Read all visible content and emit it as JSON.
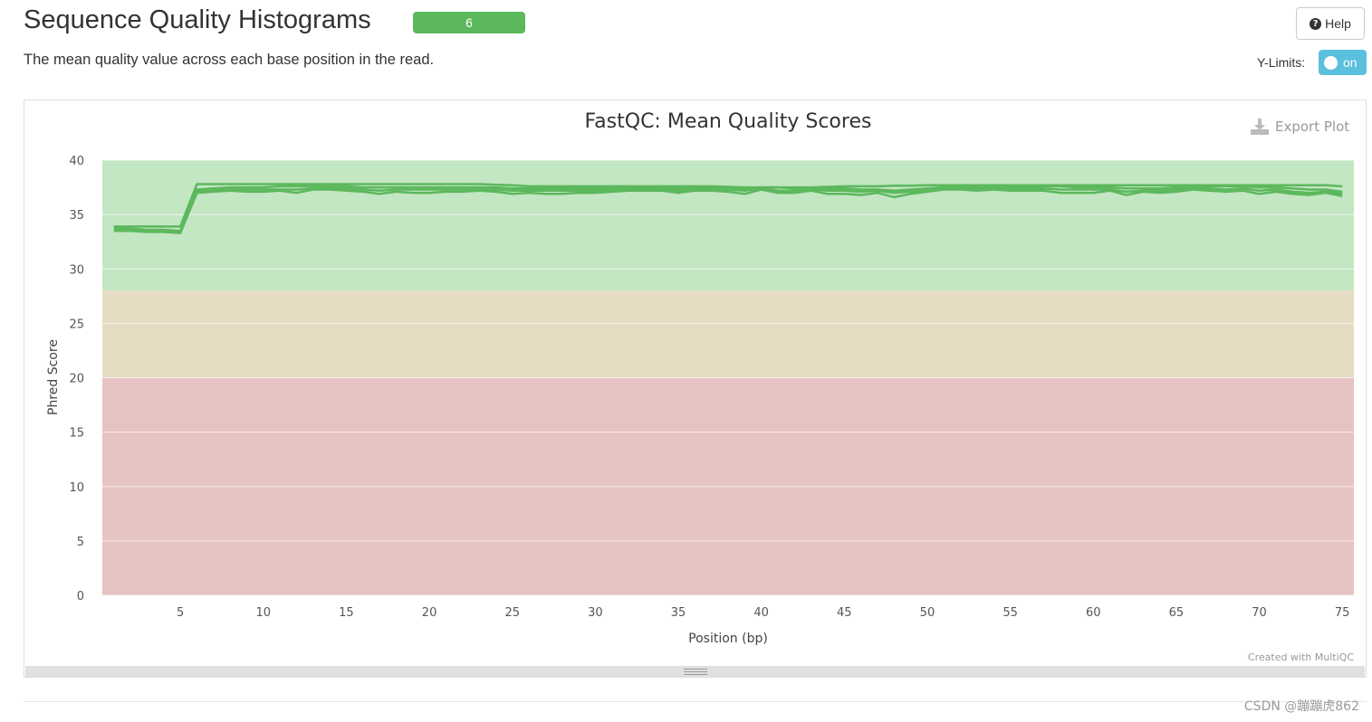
{
  "header": {
    "title": "Sequence Quality Histograms",
    "badge_count": "6",
    "description": "The mean quality value across each base position in the read."
  },
  "controls": {
    "help_label": "Help",
    "help_icon": "question-circle-icon",
    "ylimits_label": "Y-Limits:",
    "ylimits_toggle": "on"
  },
  "plot_ui": {
    "export_label": "Export Plot",
    "export_icon": "download-icon",
    "credit": "Created with MultiQC"
  },
  "watermark": "CSDN @蹦蹦虎862",
  "colors": {
    "series_line": "#5cb85c",
    "band_good": "#c3e6c3",
    "band_warn": "#e6dcc3",
    "band_fail": "#e6c3c3",
    "badge": "#5cb85c",
    "toggle": "#5bc0de"
  },
  "chart_data": {
    "type": "line",
    "title": "FastQC: Mean Quality Scores",
    "xlabel": "Position (bp)",
    "ylabel": "Phred Score",
    "xlim": [
      0.3,
      75.7
    ],
    "ylim": [
      0,
      40
    ],
    "x_ticks": [
      5,
      10,
      15,
      20,
      25,
      30,
      35,
      40,
      45,
      50,
      55,
      60,
      65,
      70,
      75
    ],
    "y_ticks": [
      0,
      5,
      10,
      15,
      20,
      25,
      30,
      35,
      40
    ],
    "grid": true,
    "legend": "none",
    "bands": [
      {
        "from": 28,
        "to": 40,
        "color": "#c3e6c3"
      },
      {
        "from": 20,
        "to": 28,
        "color": "#e6dcc3"
      },
      {
        "from": 0,
        "to": 20,
        "color": "#e6c3c3"
      }
    ],
    "x": [
      1,
      2,
      3,
      4,
      5,
      6,
      7,
      8,
      9,
      10,
      11,
      12,
      13,
      14,
      15,
      16,
      17,
      18,
      19,
      20,
      21,
      22,
      23,
      24,
      25,
      26,
      27,
      28,
      29,
      30,
      31,
      32,
      33,
      34,
      35,
      36,
      37,
      38,
      39,
      40,
      41,
      42,
      43,
      44,
      45,
      46,
      47,
      48,
      49,
      50,
      51,
      52,
      53,
      54,
      55,
      56,
      57,
      58,
      59,
      60,
      61,
      62,
      63,
      64,
      65,
      66,
      67,
      68,
      69,
      70,
      71,
      72,
      73,
      74,
      75
    ],
    "series": [
      {
        "values": [
          33.9,
          33.9,
          33.9,
          33.9,
          33.9,
          37.8,
          37.8,
          37.8,
          37.8,
          37.8,
          37.8,
          37.8,
          37.8,
          37.8,
          37.8,
          37.8,
          37.8,
          37.8,
          37.8,
          37.8,
          37.8,
          37.8,
          37.8,
          37.75,
          37.7,
          37.6,
          37.6,
          37.6,
          37.6,
          37.6,
          37.6,
          37.6,
          37.6,
          37.6,
          37.6,
          37.6,
          37.6,
          37.55,
          37.5,
          37.5,
          37.5,
          37.5,
          37.5,
          37.55,
          37.6,
          37.6,
          37.6,
          37.65,
          37.65,
          37.7,
          37.7,
          37.7,
          37.7,
          37.7,
          37.7,
          37.7,
          37.7,
          37.7,
          37.7,
          37.7,
          37.7,
          37.7,
          37.7,
          37.7,
          37.7,
          37.7,
          37.7,
          37.7,
          37.7,
          37.7,
          37.7,
          37.7,
          37.7,
          37.7,
          37.6
        ]
      },
      {
        "values": [
          33.7,
          33.7,
          33.6,
          33.6,
          33.5,
          37.3,
          37.4,
          37.5,
          37.5,
          37.5,
          37.6,
          37.6,
          37.6,
          37.6,
          37.6,
          37.5,
          37.5,
          37.5,
          37.5,
          37.5,
          37.5,
          37.5,
          37.5,
          37.5,
          37.4,
          37.4,
          37.4,
          37.4,
          37.4,
          37.4,
          37.4,
          37.4,
          37.4,
          37.4,
          37.4,
          37.4,
          37.4,
          37.4,
          37.4,
          37.5,
          37.5,
          37.4,
          37.4,
          37.4,
          37.4,
          37.3,
          37.3,
          37.2,
          37.3,
          37.4,
          37.5,
          37.6,
          37.6,
          37.6,
          37.6,
          37.6,
          37.6,
          37.6,
          37.5,
          37.5,
          37.5,
          37.4,
          37.4,
          37.4,
          37.5,
          37.6,
          37.6,
          37.6,
          37.6,
          37.5,
          37.5,
          37.4,
          37.3,
          37.3,
          37.1
        ]
      },
      {
        "values": [
          33.5,
          33.5,
          33.4,
          33.4,
          33.3,
          37.0,
          37.1,
          37.2,
          37.1,
          37.1,
          37.2,
          37.0,
          37.3,
          37.3,
          37.2,
          37.1,
          36.9,
          37.1,
          37.0,
          37.0,
          37.1,
          37.1,
          37.2,
          37.1,
          36.9,
          37.0,
          36.9,
          36.9,
          37.0,
          37.0,
          37.1,
          37.2,
          37.2,
          37.2,
          37.0,
          37.2,
          37.2,
          37.1,
          36.9,
          37.3,
          37.0,
          37.0,
          37.2,
          36.9,
          36.9,
          36.8,
          37.0,
          36.6,
          36.9,
          37.1,
          37.3,
          37.3,
          37.2,
          37.3,
          37.2,
          37.2,
          37.2,
          37.0,
          37.0,
          37.0,
          37.2,
          36.8,
          37.1,
          37.0,
          37.1,
          37.3,
          37.2,
          37.1,
          37.2,
          36.9,
          37.1,
          36.9,
          36.8,
          37.0,
          36.7
        ]
      },
      {
        "values": [
          33.6,
          33.6,
          33.5,
          33.5,
          33.4,
          37.1,
          37.2,
          37.3,
          37.3,
          37.3,
          37.3,
          37.3,
          37.4,
          37.4,
          37.4,
          37.3,
          37.2,
          37.3,
          37.3,
          37.3,
          37.3,
          37.3,
          37.3,
          37.3,
          37.2,
          37.2,
          37.2,
          37.2,
          37.2,
          37.2,
          37.3,
          37.3,
          37.3,
          37.3,
          37.2,
          37.3,
          37.3,
          37.3,
          37.2,
          37.4,
          37.2,
          37.2,
          37.3,
          37.2,
          37.2,
          37.1,
          37.2,
          37.0,
          37.1,
          37.2,
          37.4,
          37.4,
          37.4,
          37.4,
          37.4,
          37.4,
          37.4,
          37.3,
          37.3,
          37.3,
          37.3,
          37.1,
          37.2,
          37.2,
          37.3,
          37.4,
          37.4,
          37.3,
          37.4,
          37.2,
          37.3,
          37.1,
          37.0,
          37.1,
          36.9
        ]
      }
    ]
  }
}
